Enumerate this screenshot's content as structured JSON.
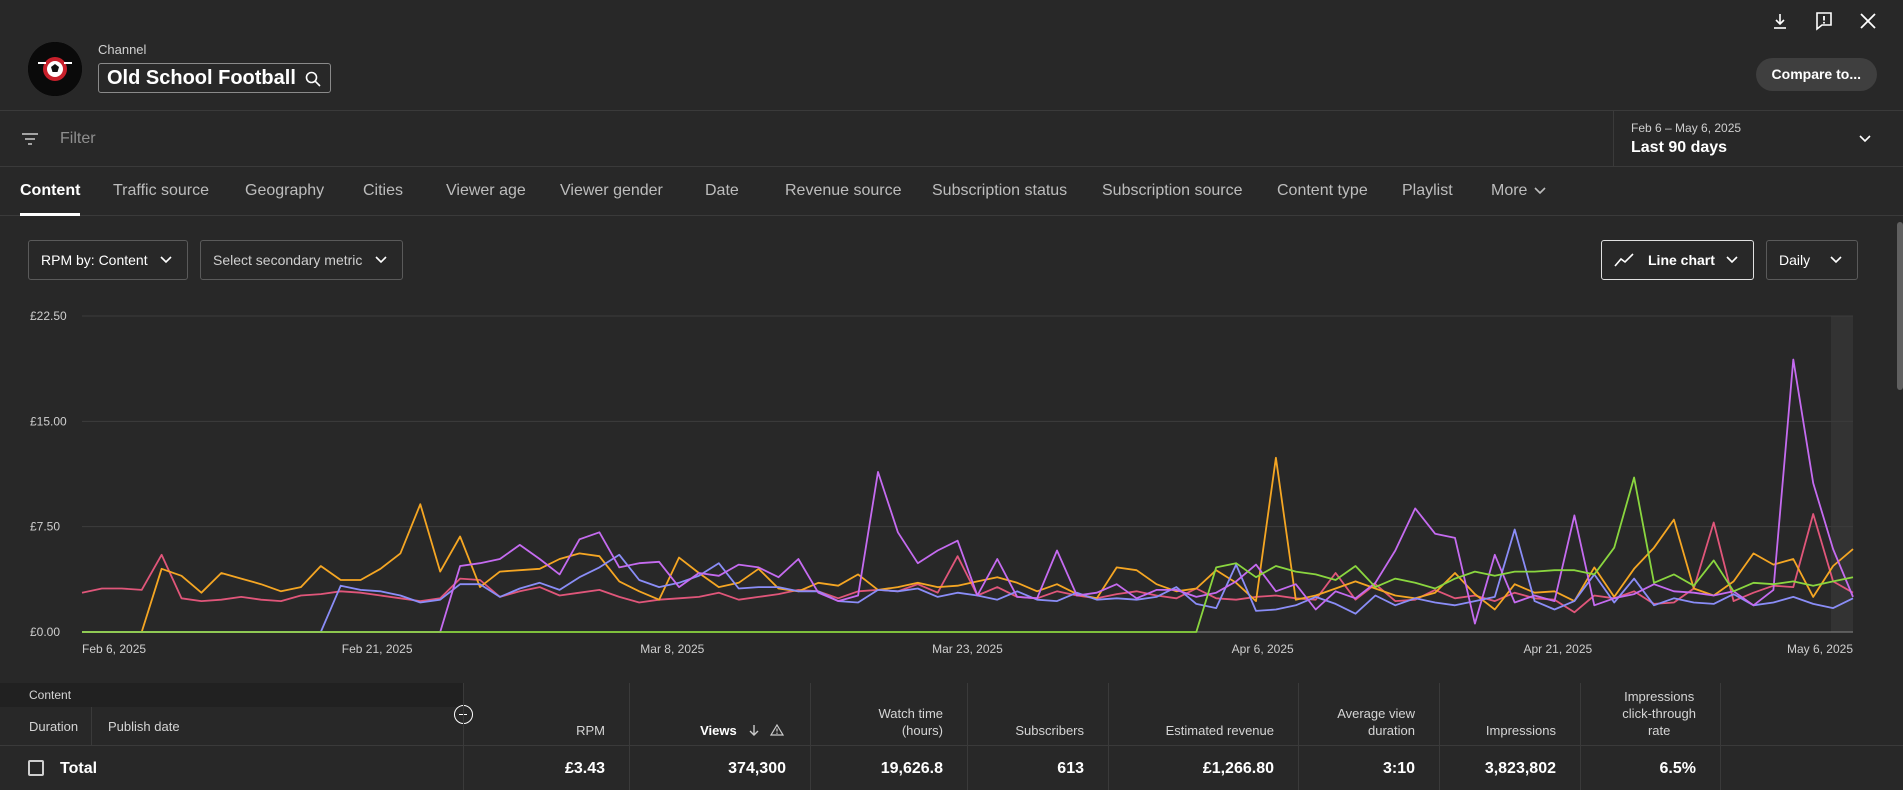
{
  "header": {
    "channel_label": "Channel",
    "channel_name": "Old School Football",
    "compare_label": "Compare to...",
    "icons": [
      "download-icon",
      "feedback-icon",
      "close-icon"
    ]
  },
  "filter": {
    "placeholder": "Filter"
  },
  "date": {
    "range": "Feb 6 – May 6, 2025",
    "label": "Last 90 days"
  },
  "tabs": [
    {
      "label": "Content",
      "active": true
    },
    {
      "label": "Traffic source"
    },
    {
      "label": "Geography"
    },
    {
      "label": "Cities"
    },
    {
      "label": "Viewer age"
    },
    {
      "label": "Viewer gender"
    },
    {
      "label": "Date"
    },
    {
      "label": "Revenue source"
    },
    {
      "label": "Subscription status"
    },
    {
      "label": "Subscription source"
    },
    {
      "label": "Content type"
    },
    {
      "label": "Playlist"
    },
    {
      "label": "More"
    }
  ],
  "controls": {
    "metric": "RPM by: Content",
    "secondary": "Select secondary metric",
    "chart_type": "Line chart",
    "granularity": "Daily"
  },
  "chart_data": {
    "type": "line",
    "yticks": [
      "£0.00",
      "£7.50",
      "£15.00",
      "£22.50"
    ],
    "ylim": [
      0,
      22.5
    ],
    "xticks": [
      "Feb 6, 2025",
      "Feb 21, 2025",
      "Mar 8, 2025",
      "Mar 23, 2025",
      "Apr 6, 2025",
      "Apr 21, 2025",
      "May 6, 2025"
    ],
    "days": 90,
    "colors": [
      "#e0567a",
      "#f5a623",
      "#8a8df7",
      "#c56bf0",
      "#8ad63f"
    ],
    "series": [
      {
        "values": [
          2.8,
          3.1,
          3.1,
          3.0,
          5.5,
          2.4,
          2.2,
          2.3,
          2.5,
          2.3,
          2.2,
          2.6,
          2.7,
          2.9,
          2.8,
          2.6,
          2.4,
          2.2,
          2.4,
          3.8,
          3.7,
          2.5,
          2.9,
          3.2,
          2.6,
          2.8,
          3.0,
          2.5,
          2.1,
          2.3,
          2.4,
          2.5,
          2.8,
          2.3,
          2.5,
          2.7,
          3.0,
          2.9,
          2.4,
          2.9,
          3.0,
          2.9,
          3.4,
          2.8,
          5.4,
          2.6,
          3.2,
          2.5,
          2.4,
          2.9,
          2.6,
          2.4,
          2.7,
          2.9,
          2.6,
          2.4,
          3.1,
          2.4,
          2.3,
          2.5,
          2.6,
          2.4,
          2.3,
          4.2,
          2.3,
          3.4,
          2.2,
          2.3,
          3.0,
          2.4,
          2.6,
          2.2,
          2.8,
          2.4,
          2.3,
          1.4,
          2.6,
          2.4,
          2.9,
          2.0,
          2.1,
          3.1,
          7.8,
          2.2,
          2.8,
          3.3,
          3.2,
          8.4,
          3.6,
          2.8
        ]
      },
      {
        "values": [
          0.0,
          0.0,
          0.0,
          0.0,
          4.5,
          4.0,
          2.8,
          4.2,
          3.8,
          3.4,
          2.9,
          3.2,
          4.7,
          3.7,
          3.7,
          4.5,
          5.6,
          9.1,
          4.3,
          6.8,
          3.2,
          4.3,
          4.4,
          4.5,
          5.2,
          5.6,
          5.4,
          3.6,
          2.9,
          2.3,
          5.3,
          4.2,
          3.2,
          3.5,
          4.5,
          3.1,
          2.9,
          3.5,
          3.3,
          4.1,
          3.0,
          3.2,
          3.5,
          3.2,
          3.3,
          3.6,
          3.9,
          3.5,
          2.9,
          3.4,
          2.7,
          2.4,
          4.6,
          4.4,
          3.4,
          2.9,
          3.1,
          4.4,
          3.5,
          2.2,
          12.4,
          2.3,
          2.6,
          3.1,
          3.6,
          3.1,
          2.6,
          2.4,
          2.8,
          4.2,
          2.7,
          1.6,
          3.4,
          2.8,
          2.9,
          2.2,
          4.6,
          2.5,
          4.5,
          6.0,
          8.0,
          3.1,
          2.6,
          3.6,
          5.6,
          4.8,
          5.2,
          2.5,
          4.7,
          5.9
        ]
      },
      {
        "values": [
          0.0,
          0.0,
          0.0,
          0.0,
          0.0,
          0.0,
          0.0,
          0.0,
          0.0,
          0.0,
          0.0,
          0.0,
          0.0,
          3.3,
          3.0,
          2.9,
          2.6,
          2.1,
          2.3,
          3.4,
          3.4,
          2.5,
          3.1,
          3.5,
          3.0,
          3.9,
          4.6,
          5.5,
          3.7,
          3.2,
          3.5,
          4.0,
          4.9,
          3.1,
          3.2,
          3.2,
          2.9,
          2.9,
          2.2,
          2.1,
          3.0,
          2.9,
          3.1,
          2.5,
          2.8,
          2.6,
          2.3,
          2.9,
          2.3,
          2.2,
          2.8,
          2.3,
          2.4,
          2.3,
          2.5,
          3.2,
          2.0,
          1.7,
          4.8,
          1.5,
          1.6,
          1.9,
          2.5,
          2.0,
          1.3,
          2.6,
          1.9,
          2.4,
          2.1,
          1.9,
          2.2,
          2.5,
          7.3,
          2.2,
          1.6,
          2.2,
          4.1,
          2.1,
          3.8,
          1.9,
          2.4,
          2.1,
          2.0,
          2.7,
          1.9,
          2.1,
          2.5,
          2.0,
          1.7,
          2.4
        ]
      },
      {
        "values": [
          0.0,
          0.0,
          0.0,
          0.0,
          0.0,
          0.0,
          0.0,
          0.0,
          0.0,
          0.0,
          0.0,
          0.0,
          0.0,
          0.0,
          0.0,
          0.0,
          0.0,
          0.0,
          0.0,
          4.7,
          4.9,
          5.2,
          6.2,
          5.2,
          4.1,
          6.6,
          7.1,
          4.6,
          4.9,
          5.0,
          3.2,
          4.2,
          4.0,
          4.8,
          4.6,
          3.9,
          5.2,
          2.8,
          2.2,
          2.6,
          11.4,
          7.1,
          4.9,
          5.8,
          6.5,
          2.6,
          5.2,
          2.5,
          2.4,
          5.8,
          2.6,
          2.8,
          3.4,
          2.4,
          3.0,
          3.0,
          2.5,
          2.8,
          3.6,
          4.8,
          2.9,
          3.4,
          1.6,
          2.9,
          2.4,
          3.5,
          5.8,
          8.8,
          7.0,
          6.7,
          0.6,
          5.5,
          2.1,
          2.6,
          2.2,
          8.3,
          1.9,
          2.4,
          2.7,
          3.4,
          2.9,
          2.8,
          2.6,
          2.9,
          1.9,
          3.0,
          19.4,
          10.6,
          5.9,
          2.5
        ]
      },
      {
        "values": [
          0.0,
          0.0,
          0.0,
          0.0,
          0.0,
          0.0,
          0.0,
          0.0,
          0.0,
          0.0,
          0.0,
          0.0,
          0.0,
          0.0,
          0.0,
          0.0,
          0.0,
          0.0,
          0.0,
          0.0,
          0.0,
          0.0,
          0.0,
          0.0,
          0.0,
          0.0,
          0.0,
          0.0,
          0.0,
          0.0,
          0.0,
          0.0,
          0.0,
          0.0,
          0.0,
          0.0,
          0.0,
          0.0,
          0.0,
          0.0,
          0.0,
          0.0,
          0.0,
          0.0,
          0.0,
          0.0,
          0.0,
          0.0,
          0.0,
          0.0,
          0.0,
          0.0,
          0.0,
          0.0,
          0.0,
          0.0,
          0.0,
          4.6,
          4.9,
          3.9,
          4.7,
          4.3,
          4.1,
          3.7,
          4.7,
          3.2,
          3.8,
          3.5,
          3.1,
          3.8,
          4.3,
          4.0,
          4.3,
          4.3,
          4.4,
          4.4,
          4.1,
          6.0,
          11.0,
          3.5,
          4.1,
          3.3,
          5.1,
          2.9,
          3.5,
          3.4,
          3.6,
          3.3,
          3.6,
          3.9
        ]
      }
    ]
  },
  "table": {
    "content_header": "Content",
    "sub_cols": [
      "Duration",
      "Publish date"
    ],
    "columns": [
      {
        "label": "RPM"
      },
      {
        "label": "Views",
        "sorted": true
      },
      {
        "label": "Watch time\n(hours)"
      },
      {
        "label": "Subscribers"
      },
      {
        "label": "Estimated revenue"
      },
      {
        "label": "Average view\nduration"
      },
      {
        "label": "Impressions"
      },
      {
        "label": "Impressions\nclick-through\nrate"
      }
    ],
    "total_label": "Total",
    "totals": [
      "£3.43",
      "374,300",
      "19,626.8",
      "613",
      "£1,266.80",
      "3:10",
      "3,823,802",
      "6.5%"
    ]
  }
}
